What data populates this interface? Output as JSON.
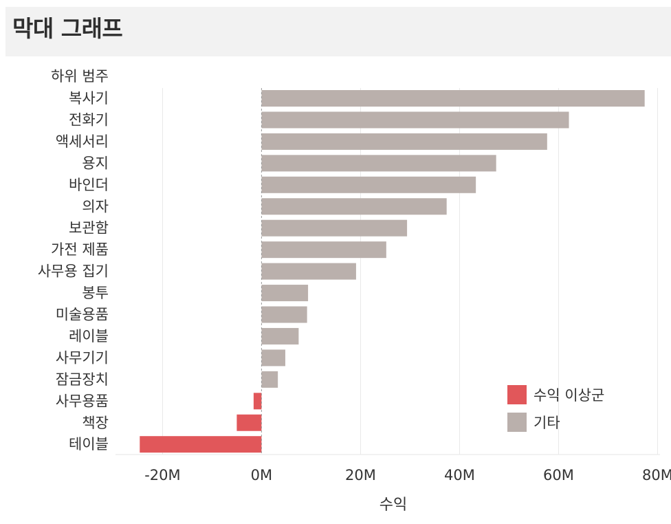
{
  "page": {
    "title": "막대 그래프"
  },
  "chart_data": {
    "type": "bar",
    "orientation": "horizontal",
    "title": "막대 그래프",
    "category_axis_title": "하위 범주",
    "xlabel": "수익",
    "xlim": [
      -29.5,
      80.5
    ],
    "xticks": [
      -20,
      0,
      20,
      40,
      60,
      80
    ],
    "xtick_labels": [
      "-20M",
      "0M",
      "20M",
      "40M",
      "60M",
      "80M"
    ],
    "categories": [
      "복사기",
      "전화기",
      "액세서리",
      "용지",
      "바인더",
      "의자",
      "보관함",
      "가전 제품",
      "사무용 집기",
      "봉투",
      "미술용품",
      "레이블",
      "사무기기",
      "잠금장치",
      "사무용품",
      "책장",
      "테이블"
    ],
    "values": [
      77.4,
      62.1,
      57.7,
      47.4,
      43.3,
      37.4,
      29.4,
      25.2,
      19.1,
      9.4,
      9.2,
      7.5,
      4.8,
      3.3,
      -1.6,
      -5.0,
      -24.6
    ],
    "groups": [
      "기타",
      "기타",
      "기타",
      "기타",
      "기타",
      "기타",
      "기타",
      "기타",
      "기타",
      "기타",
      "기타",
      "기타",
      "기타",
      "기타",
      "수익 이상군",
      "수익 이상군",
      "수익 이상군"
    ],
    "legend": {
      "position": "bottom-right",
      "entries": [
        {
          "name": "수익 이상군",
          "color": "#e1575a"
        },
        {
          "name": "기타",
          "color": "#bab0ac"
        }
      ]
    },
    "grid": true,
    "zero_line": "dashed"
  }
}
